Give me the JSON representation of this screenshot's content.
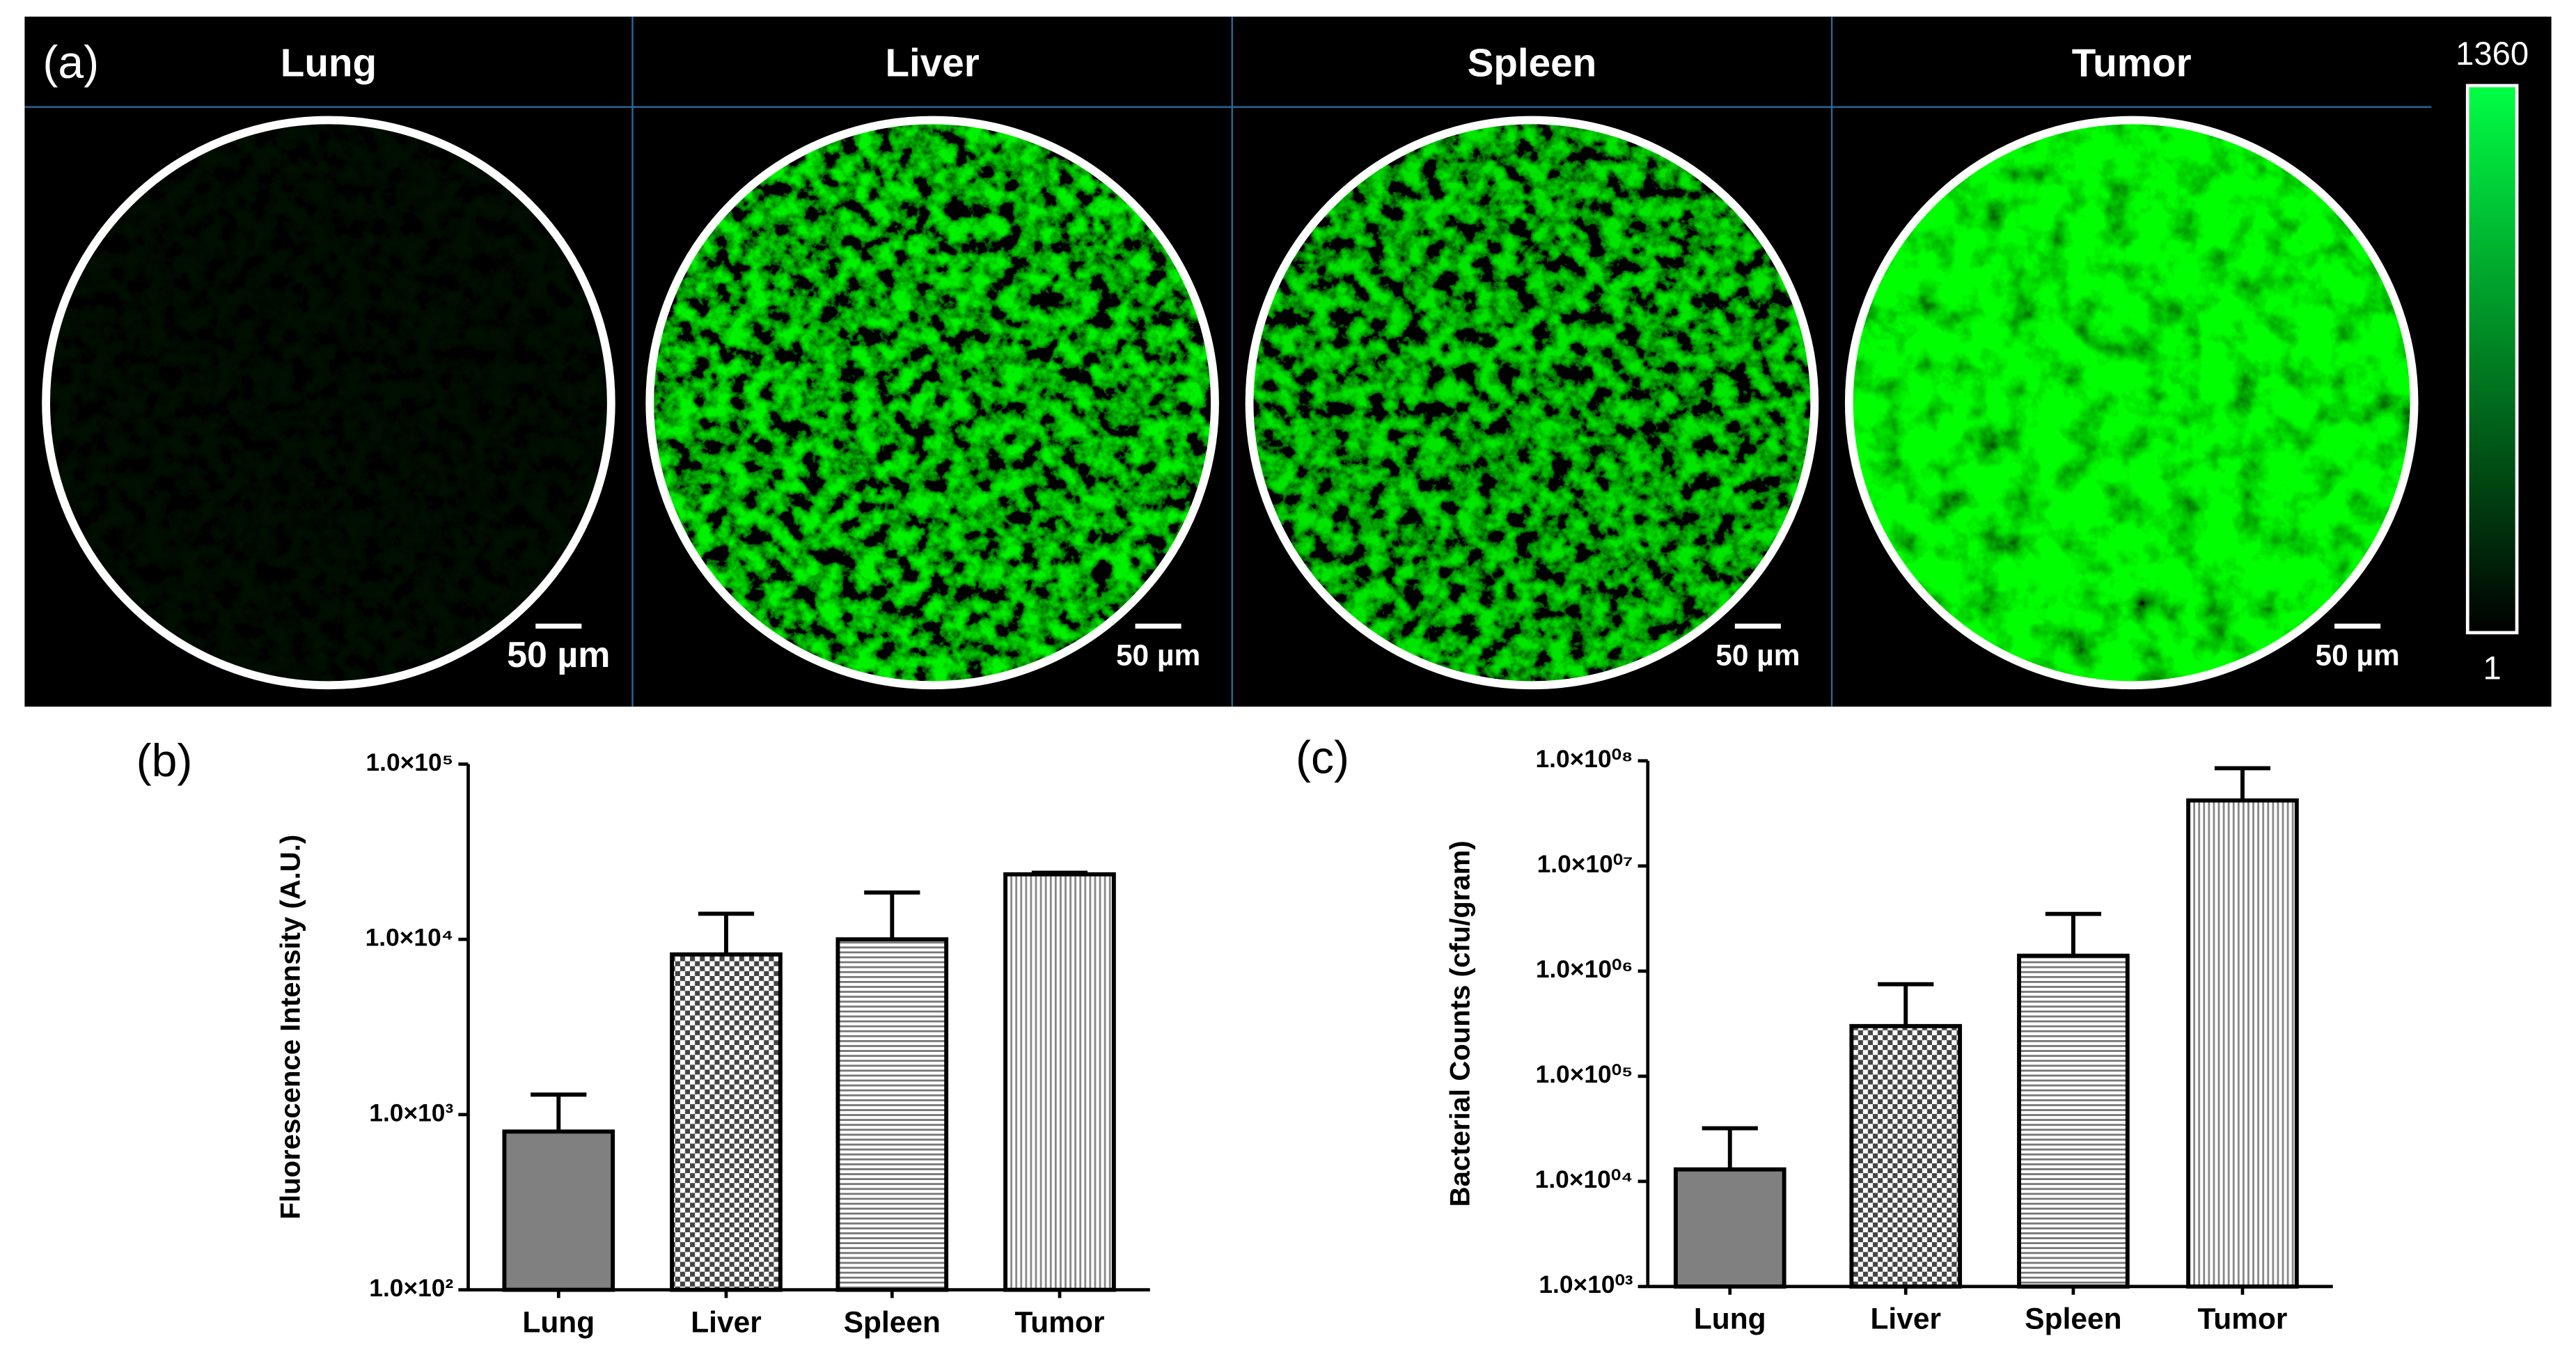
{
  "panel_a": {
    "label": "(a)",
    "panels": [
      {
        "title": "Lung",
        "scale_bar": "50 µm"
      },
      {
        "title": "Liver",
        "scale_bar": "50 µm"
      },
      {
        "title": "Spleen",
        "scale_bar": "50 µm"
      },
      {
        "title": "Tumor",
        "scale_bar": "50 µm"
      }
    ],
    "colorbar": {
      "max": 1360,
      "min": 1
    }
  },
  "chart_data": [
    {
      "type": "bar",
      "label": "(b)",
      "y_label": "Fluorescence Intensity (A.U.)",
      "categories": [
        "Lung",
        "Liver",
        "Spleen",
        "Tumor"
      ],
      "values": [
        800,
        8200,
        10000,
        23500
      ],
      "errors": [
        500,
        5800,
        8500,
        500
      ],
      "color": "#808080",
      "patterns": [
        "solid",
        "checker",
        "hlines",
        "vlines"
      ],
      "log_scale": true,
      "ylim": [
        100,
        100000
      ],
      "yticks": [
        {
          "value": 100,
          "label": "1.0×10²"
        },
        {
          "value": 1000,
          "label": "1.0×10³"
        },
        {
          "value": 10000,
          "label": "1.0×10⁴"
        },
        {
          "value": 100000,
          "label": "1.0×10⁵"
        }
      ]
    },
    {
      "type": "bar",
      "label": "(c)",
      "y_label": "Bacterial Counts (cfu/gram)",
      "categories": [
        "Lung",
        "Liver",
        "Spleen",
        "Tumor"
      ],
      "values": [
        13000,
        300000,
        1400000,
        42000000
      ],
      "errors": [
        19000,
        450000,
        2100000,
        43000000
      ],
      "color": "#808080",
      "patterns": [
        "solid",
        "checker",
        "hlines",
        "vlines"
      ],
      "log_scale": true,
      "ylim": [
        1000,
        100000000
      ],
      "yticks": [
        {
          "value": 1000,
          "label": "1.0×10⁰³"
        },
        {
          "value": 10000,
          "label": "1.0×10⁰⁴"
        },
        {
          "value": 100000,
          "label": "1.0×10⁰⁵"
        },
        {
          "value": 1000000,
          "label": "1.0×10⁰⁶"
        },
        {
          "value": 10000000,
          "label": "1.0×10⁰⁷"
        },
        {
          "value": 100000000,
          "label": "1.0×10⁰⁸"
        }
      ]
    }
  ]
}
